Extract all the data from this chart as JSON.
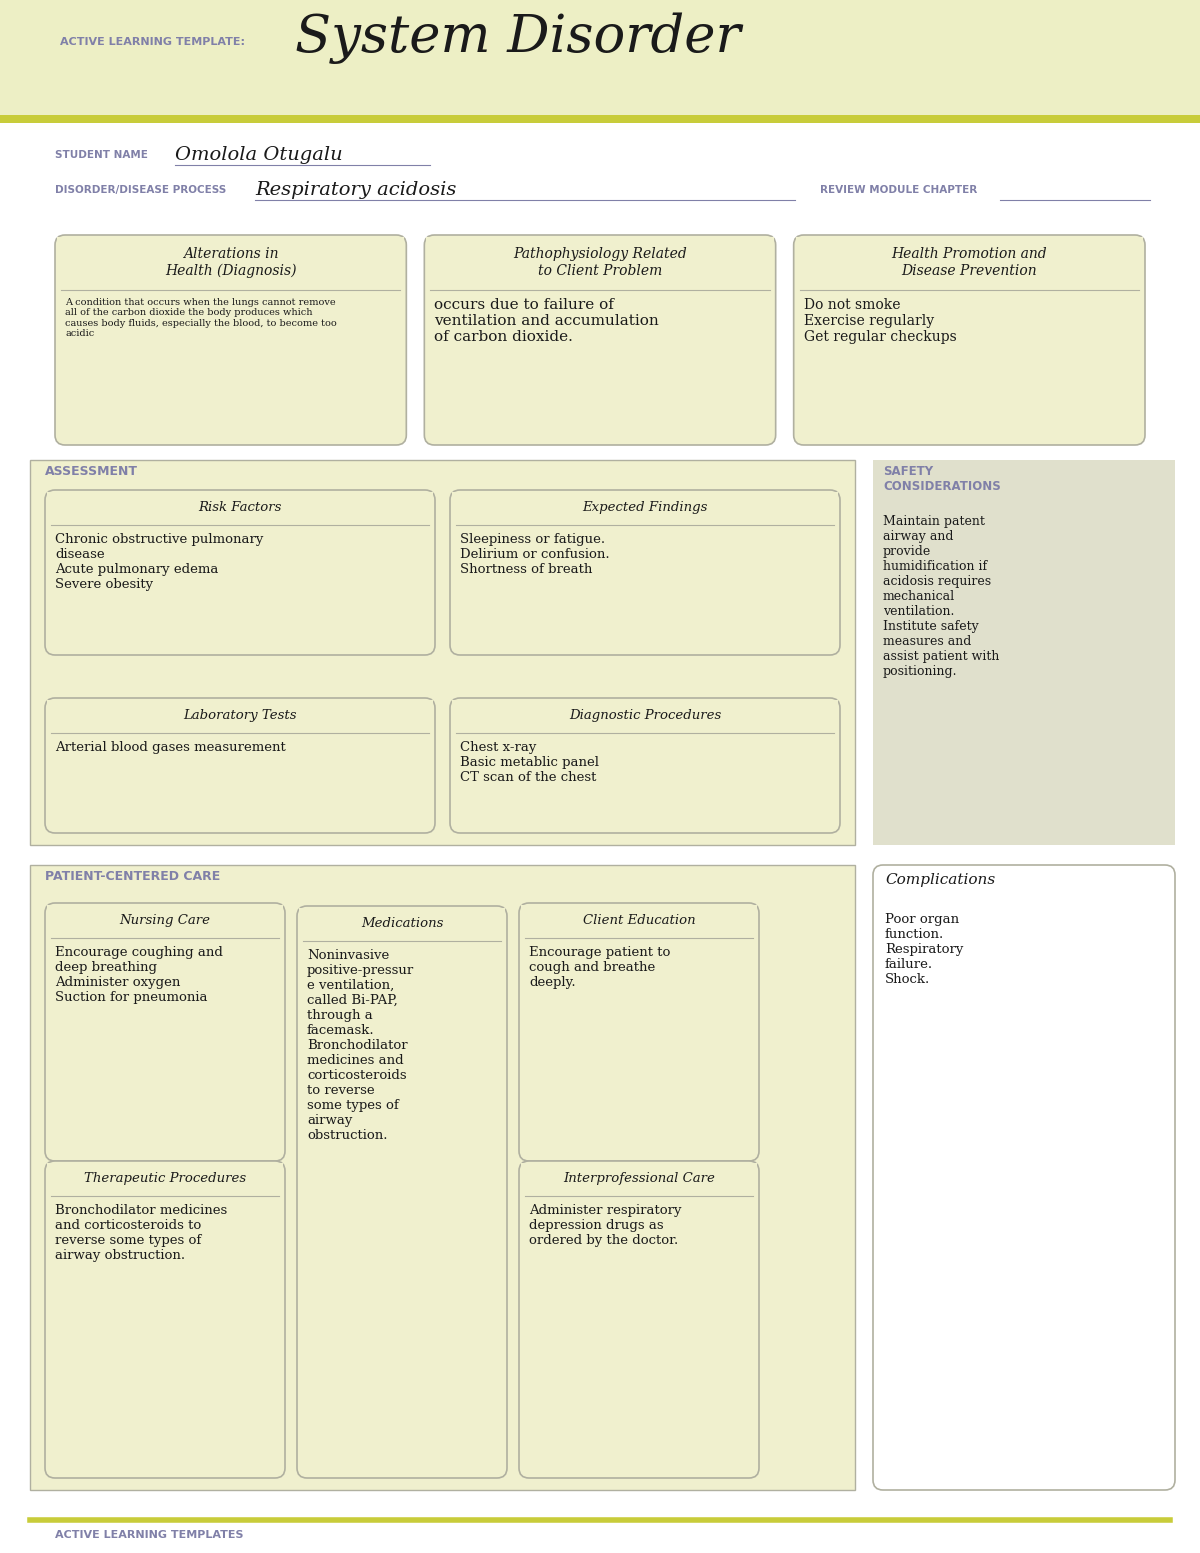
{
  "header_bg": "#edefc5",
  "white_bg": "#ffffff",
  "olive_line": "#c8cc3a",
  "box_bg": "#f0f0ce",
  "box_border": "#b0b0a0",
  "safety_bg": "#e0e0cc",
  "purple_text": "#8080a8",
  "dark_text": "#1a1a1a",
  "title_small": "ACTIVE LEARNING TEMPLATE:",
  "title_large": "System Disorder",
  "student_label": "STUDENT NAME",
  "student_name": "Omolola Otugalu",
  "disorder_label": "DISORDER/DISEASE PROCESS",
  "disorder_name": "Respiratory acidosis",
  "review_label": "REVIEW MODULE CHAPTER",
  "section1_boxes": [
    {
      "title": "Alterations in\nHealth (Diagnosis)",
      "body": "A condition that occurs when the lungs cannot remove\nall of the carbon dioxide the body produces which\ncauses body fluids, especially the blood, to become too\nacidic",
      "body_fs": 7.0
    },
    {
      "title": "Pathophysiology Related\nto Client Problem",
      "body": "occurs due to failure of\nventilation and accumulation\nof carbon dioxide.",
      "body_fs": 11.0
    },
    {
      "title": "Health Promotion and\nDisease Prevention",
      "body": "Do not smoke\nExercise regularly\nGet regular checkups",
      "body_fs": 10.0
    }
  ],
  "assessment_label": "ASSESSMENT",
  "safety_label": "SAFETY\nCONSIDERATIONS",
  "safety_text": "Maintain patent\nairway and\nprovide\nhumidification if\nacidosis requires\nmechanical\nventilation.\nInstitute safety\nmeasures and\nassist patient with\npositioning.",
  "assessment_boxes": [
    {
      "title": "Risk Factors",
      "body": "Chronic obstructive pulmonary\ndisease\nAcute pulmonary edema\nSevere obesity",
      "body_fs": 9.5
    },
    {
      "title": "Expected Findings",
      "body": "Sleepiness or fatigue.\nDelirium or confusion.\nShortness of breath",
      "body_fs": 9.5
    },
    {
      "title": "Laboratory Tests",
      "body": "Arterial blood gases measurement",
      "body_fs": 9.5
    },
    {
      "title": "Diagnostic Procedures",
      "body": "Chest x-ray\nBasic metablic panel\nCT scan of the chest",
      "body_fs": 9.5
    }
  ],
  "patient_label": "PATIENT-CENTERED CARE",
  "complications_title": "Complications",
  "complications_text": "Poor organ\nfunction.\nRespiratory\nfailure.\nShock.",
  "patient_boxes": [
    {
      "title": "Nursing Care",
      "body": "Encourage coughing and\ndeep breathing\nAdminister oxygen\nSuction for pneumonia",
      "body_fs": 9.5
    },
    {
      "title": "Medications",
      "body": "Noninvasive\npositive-pressur\ne ventilation,\ncalled Bi-PAP,\nthrough a\nfacemask.\nBronchodilator\nmedicines and\ncorticosteroids\nto reverse\nsome types of\nairway\nobstruction.",
      "body_fs": 9.5
    },
    {
      "title": "Client Education",
      "body": "Encourage patient to\ncough and breathe\ndeeply.",
      "body_fs": 9.5
    },
    {
      "title": "Therapeutic Procedures",
      "body": "Bronchodilator medicines\nand corticosteroids to\nreverse some types of\nairway obstruction.",
      "body_fs": 9.5
    },
    {
      "title": "Interprofessional Care",
      "body": "Administer respiratory\ndepression drugs as\nordered by the doctor.",
      "body_fs": 9.5
    }
  ],
  "footer_text": "ACTIVE LEARNING TEMPLATES"
}
